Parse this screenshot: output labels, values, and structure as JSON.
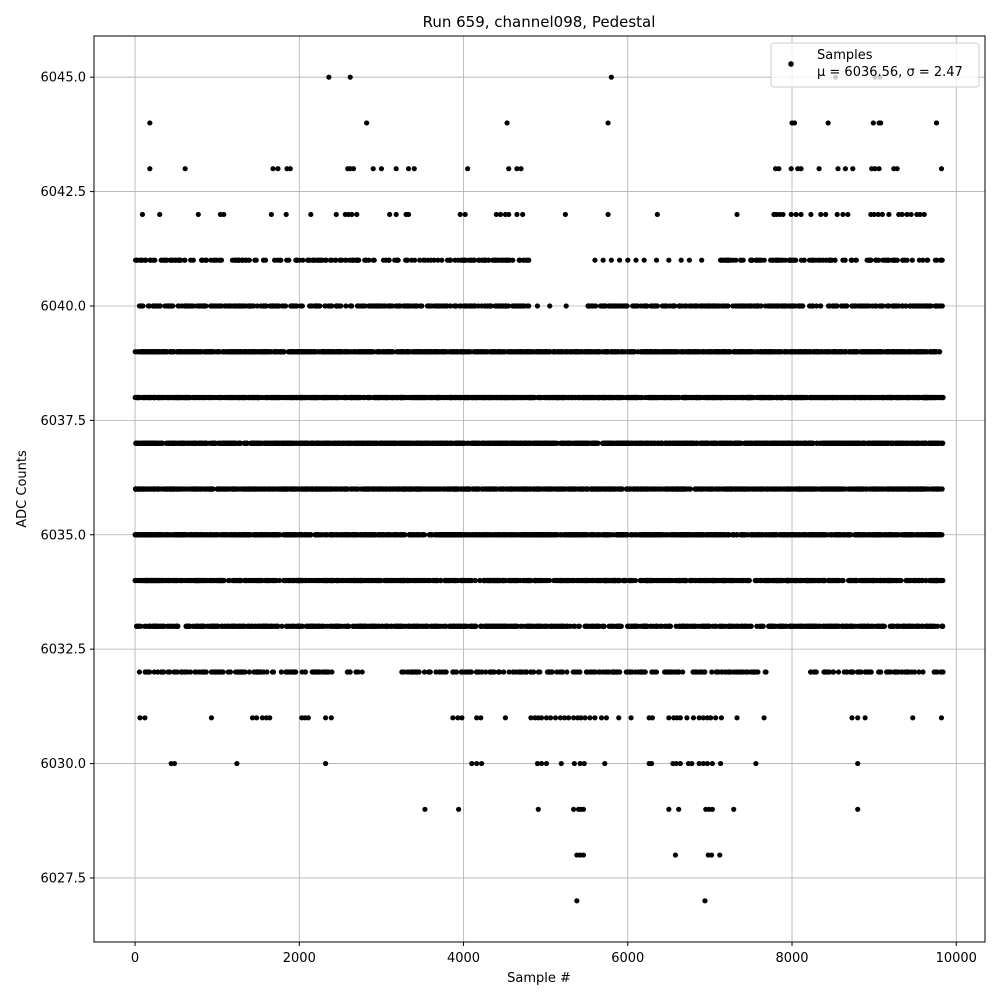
{
  "chart_data": {
    "type": "scatter",
    "title": "Run 659, channel098, Pedestal",
    "xlabel": "Sample #",
    "ylabel": "ADC Counts",
    "xlim": [
      -500,
      10350
    ],
    "ylim": [
      6026.1,
      6045.9
    ],
    "x_ticks": [
      0,
      2000,
      4000,
      6000,
      8000,
      10000
    ],
    "y_ticks": [
      6027.5,
      6030.0,
      6032.5,
      6035.0,
      6037.5,
      6040.0,
      6042.5,
      6045.0
    ],
    "grid": true,
    "legend_placement": "top-right",
    "series": [
      {
        "name": "Samples",
        "color": "#000000",
        "x_range": [
          0,
          9840
        ],
        "levels": [
          {
            "y": 6045,
            "x": [
              2360,
              2620,
              5800,
              8530,
              9010,
              9070
            ]
          },
          {
            "y": 6044,
            "x": [
              180,
              2820,
              4530,
              5760,
              8000,
              8030,
              8440,
              8990,
              9060,
              9080,
              9760
            ]
          },
          {
            "y": 6043,
            "x": [
              180,
              610,
              1680,
              1740,
              1850,
              1890,
              2590,
              2620,
              2660,
              2900,
              3000,
              3180,
              3330,
              3400,
              4050,
              4550,
              4650,
              4700,
              7800,
              7840,
              7990,
              8070,
              8110,
              8330,
              8560,
              8650,
              8740,
              8970,
              9010,
              9060,
              9240,
              9280,
              9820
            ]
          },
          {
            "y": 6042,
            "x": [
              90,
              300,
              770,
              1040,
              1080,
              1660,
              1840,
              2140,
              2450,
              2560,
              2600,
              2640,
              2700,
              3100,
              3180,
              3300,
              3330,
              3960,
              4020,
              4400,
              4450,
              4510,
              4550,
              4650,
              4720,
              5240,
              5760,
              6360,
              7330,
              7780,
              7810,
              7850,
              7890,
              7990,
              8050,
              8110,
              8230,
              8350,
              8410,
              8550,
              8620,
              8680,
              8960,
              9000,
              9050,
              9100,
              9180,
              9300,
              9340,
              9400,
              9450,
              9520,
              9560,
              9610
            ]
          },
          {
            "y": 6041,
            "x_dense": [
              [
                0,
                4800
              ],
              [
                7100,
                9840
              ]
            ],
            "count_dense": 320,
            "x": [
              5600,
              5700,
              5800,
              5900,
              6000,
              6100,
              6200,
              6350,
              6500,
              6650,
              6750,
              6900
            ]
          },
          {
            "y": 6040,
            "x_dense": [
              [
                50,
                4800
              ],
              [
                5500,
                9840
              ]
            ],
            "count_dense": 600,
            "x": [
              4900,
              5050,
              5250
            ]
          },
          {
            "y": 6039,
            "x_dense": [
              [
                0,
                9840
              ]
            ],
            "count_dense": 1150
          },
          {
            "y": 6038,
            "x_dense": [
              [
                0,
                9840
              ]
            ],
            "count_dense": 1500
          },
          {
            "y": 6037,
            "x_dense": [
              [
                0,
                9840
              ]
            ],
            "count_dense": 1500
          },
          {
            "y": 6036,
            "x_dense": [
              [
                0,
                9840
              ]
            ],
            "count_dense": 1450
          },
          {
            "y": 6035,
            "x_dense": [
              [
                0,
                9840
              ]
            ],
            "count_dense": 1300
          },
          {
            "y": 6034,
            "x_dense": [
              [
                0,
                9840
              ]
            ],
            "count_dense": 1100
          },
          {
            "y": 6033,
            "x_dense": [
              [
                0,
                9840
              ]
            ],
            "count_dense": 800
          },
          {
            "y": 6032,
            "x_dense": [
              [
                0,
                2800
              ],
              [
                3200,
                7700
              ],
              [
                8200,
                9840
              ]
            ],
            "count_dense": 360
          },
          {
            "y": 6031,
            "x": [
              60,
              120,
              930,
              1430,
              1480,
              1550,
              1600,
              1640,
              2030,
              2070,
              2110,
              2320,
              2390,
              3870,
              3930,
              3980,
              4160,
              4210,
              4510,
              4820,
              4870,
              4910,
              4950,
              5010,
              5060,
              5120,
              5180,
              5230,
              5280,
              5340,
              5390,
              5430,
              5480,
              5540,
              5600,
              5680,
              5740,
              5890,
              6040,
              6260,
              6300,
              6500,
              6560,
              6600,
              6640,
              6720,
              6800,
              6870,
              6920,
              6970,
              7010,
              7070,
              7140,
              7330,
              7660,
              8730,
              8800,
              8890,
              9470,
              9820
            ]
          },
          {
            "y": 6030,
            "x": [
              440,
              480,
              1240,
              2320,
              4100,
              4160,
              4220,
              4900,
              4950,
              5010,
              5190,
              5350,
              5420,
              5470,
              5720,
              6260,
              6290,
              6550,
              6590,
              6640,
              6740,
              6780,
              6870,
              6920,
              6970,
              7030,
              7130,
              7560,
              8800
            ]
          },
          {
            "y": 6029,
            "x": [
              3530,
              3940,
              4910,
              5340,
              5400,
              5430,
              5460,
              6500,
              6620,
              6950,
              6990,
              7030,
              7290,
              8800
            ]
          },
          {
            "y": 6028,
            "x": [
              5380,
              5420,
              5460,
              6580,
              6980,
              7020,
              7120
            ]
          },
          {
            "y": 6027,
            "x": [
              5380,
              6940
            ]
          }
        ]
      }
    ],
    "legend": {
      "series_label": "Samples",
      "stats_label": "μ = 6036.56, σ = 2.47"
    }
  }
}
